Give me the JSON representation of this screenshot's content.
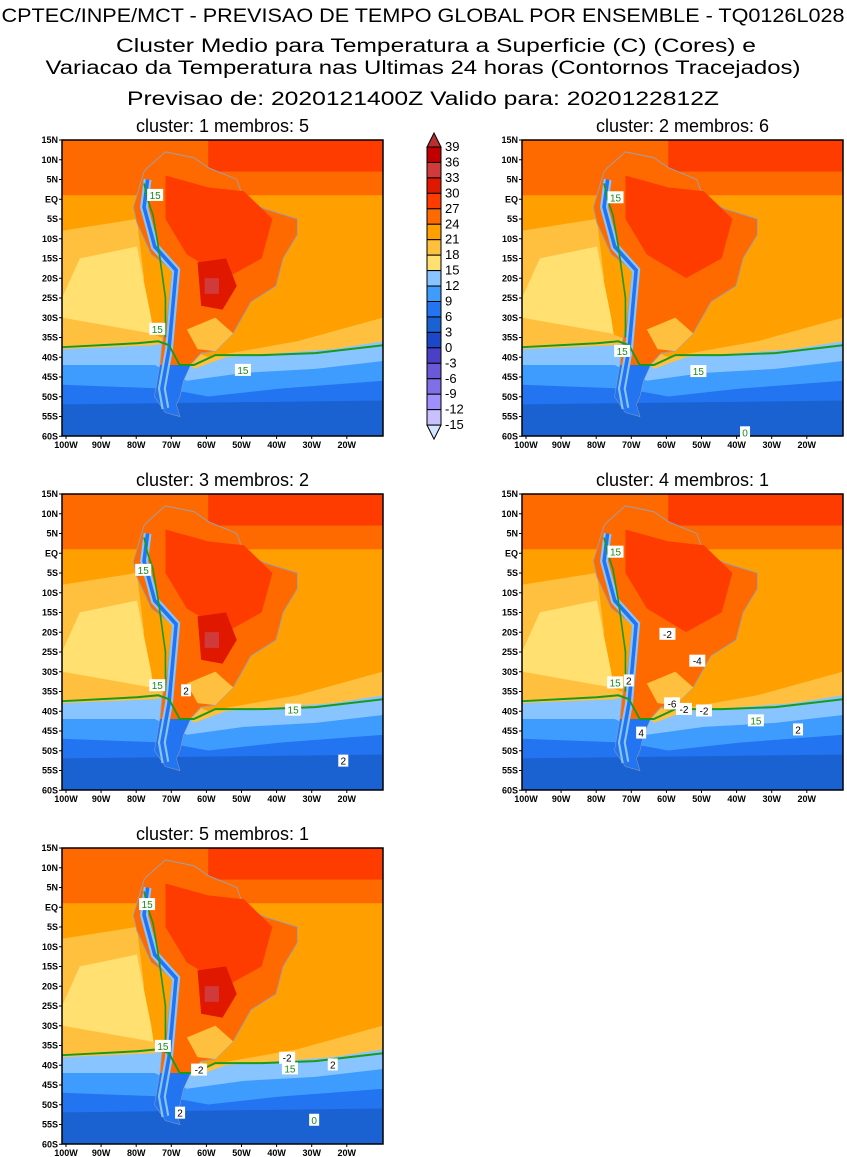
{
  "header": {
    "line1": "CPTEC/INPE/MCT - PREVISAO DE TEMPO GLOBAL POR ENSEMBLE - TQ0126L028",
    "line2": "Cluster Medio para Temperatura a Superficie (C) (Cores) e",
    "line3": "Variacao da Temperatura nas Ultimas 24 horas (Contornos Tracejados)",
    "line4": "Previsao de: 2020121400Z   Valido para: 2020122812Z"
  },
  "axes": {
    "lat_labels": [
      "15N",
      "10N",
      "5N",
      "EQ",
      "5S",
      "10S",
      "15S",
      "20S",
      "25S",
      "30S",
      "35S",
      "40S",
      "45S",
      "50S",
      "55S",
      "60S"
    ],
    "lon_labels": [
      "100W",
      "90W",
      "80W",
      "70W",
      "60W",
      "50W",
      "40W",
      "30W",
      "20W"
    ]
  },
  "colorbar": {
    "labels": [
      "39",
      "36",
      "33",
      "30",
      "27",
      "24",
      "21",
      "18",
      "15",
      "12",
      "9",
      "6",
      "3",
      "0",
      "-3",
      "-6",
      "-9",
      "-12",
      "-15"
    ],
    "colors": [
      "#c00000",
      "#d03a3a",
      "#e01800",
      "#ff3c00",
      "#ff6a00",
      "#ffa000",
      "#ffc040",
      "#ffe070",
      "#88c4ff",
      "#3e9cff",
      "#2374f0",
      "#1a62d2",
      "#1a48c8",
      "#4a40c8",
      "#6a58d8",
      "#8070e8",
      "#a090ff",
      "#c8c0ff"
    ],
    "top_color": "#b83030",
    "bottom_color": "#d4e6ff"
  },
  "panels": [
    {
      "title": "cluster: 1   membros: 5",
      "hot": true,
      "labels": [
        {
          "t": "15",
          "lon": -74.6,
          "lat": 1.1,
          "green": true
        },
        {
          "t": "15",
          "lon": -74,
          "lat": -32.8,
          "green": true
        },
        {
          "t": "15",
          "lon": -49.6,
          "lat": -43.2,
          "green": true
        }
      ]
    },
    {
      "title": "cluster: 2   membros: 6",
      "hot": false,
      "labels": [
        {
          "t": "15",
          "lon": -74.5,
          "lat": 0.5,
          "green": true
        },
        {
          "t": "15",
          "lon": -72.6,
          "lat": -38.4,
          "green": true
        },
        {
          "t": "15",
          "lon": -50.9,
          "lat": -43.5,
          "green": true
        },
        {
          "t": "0",
          "lon": -37.6,
          "lat": -59,
          "green": true
        }
      ]
    },
    {
      "title": "cluster: 3   membros: 2",
      "hot": true,
      "labels": [
        {
          "t": "15",
          "lon": -78,
          "lat": -4.2,
          "green": true
        },
        {
          "t": "15",
          "lon": -74,
          "lat": -33.4,
          "green": true
        },
        {
          "t": "2",
          "lon": -65.8,
          "lat": -34.7
        },
        {
          "t": "15",
          "lon": -35.3,
          "lat": -39.6,
          "green": true
        },
        {
          "t": "2",
          "lon": -21,
          "lat": -52.5
        }
      ]
    },
    {
      "title": "cluster: 4   membros: 1",
      "hot": false,
      "labels": [
        {
          "t": "15",
          "lon": -74.5,
          "lat": 0.4,
          "green": true
        },
        {
          "t": "-2",
          "lon": -59.7,
          "lat": -20.4
        },
        {
          "t": "-4",
          "lon": -51.2,
          "lat": -27.2
        },
        {
          "t": "2",
          "lon": -70.7,
          "lat": -32.2
        },
        {
          "t": "15",
          "lon": -74.6,
          "lat": -32.7,
          "green": true
        },
        {
          "t": "-6",
          "lon": -58.4,
          "lat": -38
        },
        {
          "t": "-2",
          "lon": -55,
          "lat": -39.4
        },
        {
          "t": "-2",
          "lon": -49.3,
          "lat": -39.8
        },
        {
          "t": "15",
          "lon": -34.5,
          "lat": -42.3,
          "green": true
        },
        {
          "t": "2",
          "lon": -22.5,
          "lat": -44.6
        },
        {
          "t": "4",
          "lon": -67.2,
          "lat": -45.4
        }
      ]
    },
    {
      "title": "cluster: 5   membros: 1",
      "hot": true,
      "labels": [
        {
          "t": "15",
          "lon": -76.9,
          "lat": 0.8,
          "green": true
        },
        {
          "t": "15",
          "lon": -72.4,
          "lat": -35.1,
          "green": true
        },
        {
          "t": "-2",
          "lon": -37,
          "lat": -38.1
        },
        {
          "t": "2",
          "lon": -24,
          "lat": -39.8
        },
        {
          "t": "-2",
          "lon": -62.1,
          "lat": -41.1
        },
        {
          "t": "15",
          "lon": -36.2,
          "lat": -40.8,
          "green": true
        },
        {
          "t": "2",
          "lon": -67.5,
          "lat": -52
        },
        {
          "t": "0",
          "lon": -29.3,
          "lat": -53.8,
          "green": true
        }
      ]
    }
  ]
}
